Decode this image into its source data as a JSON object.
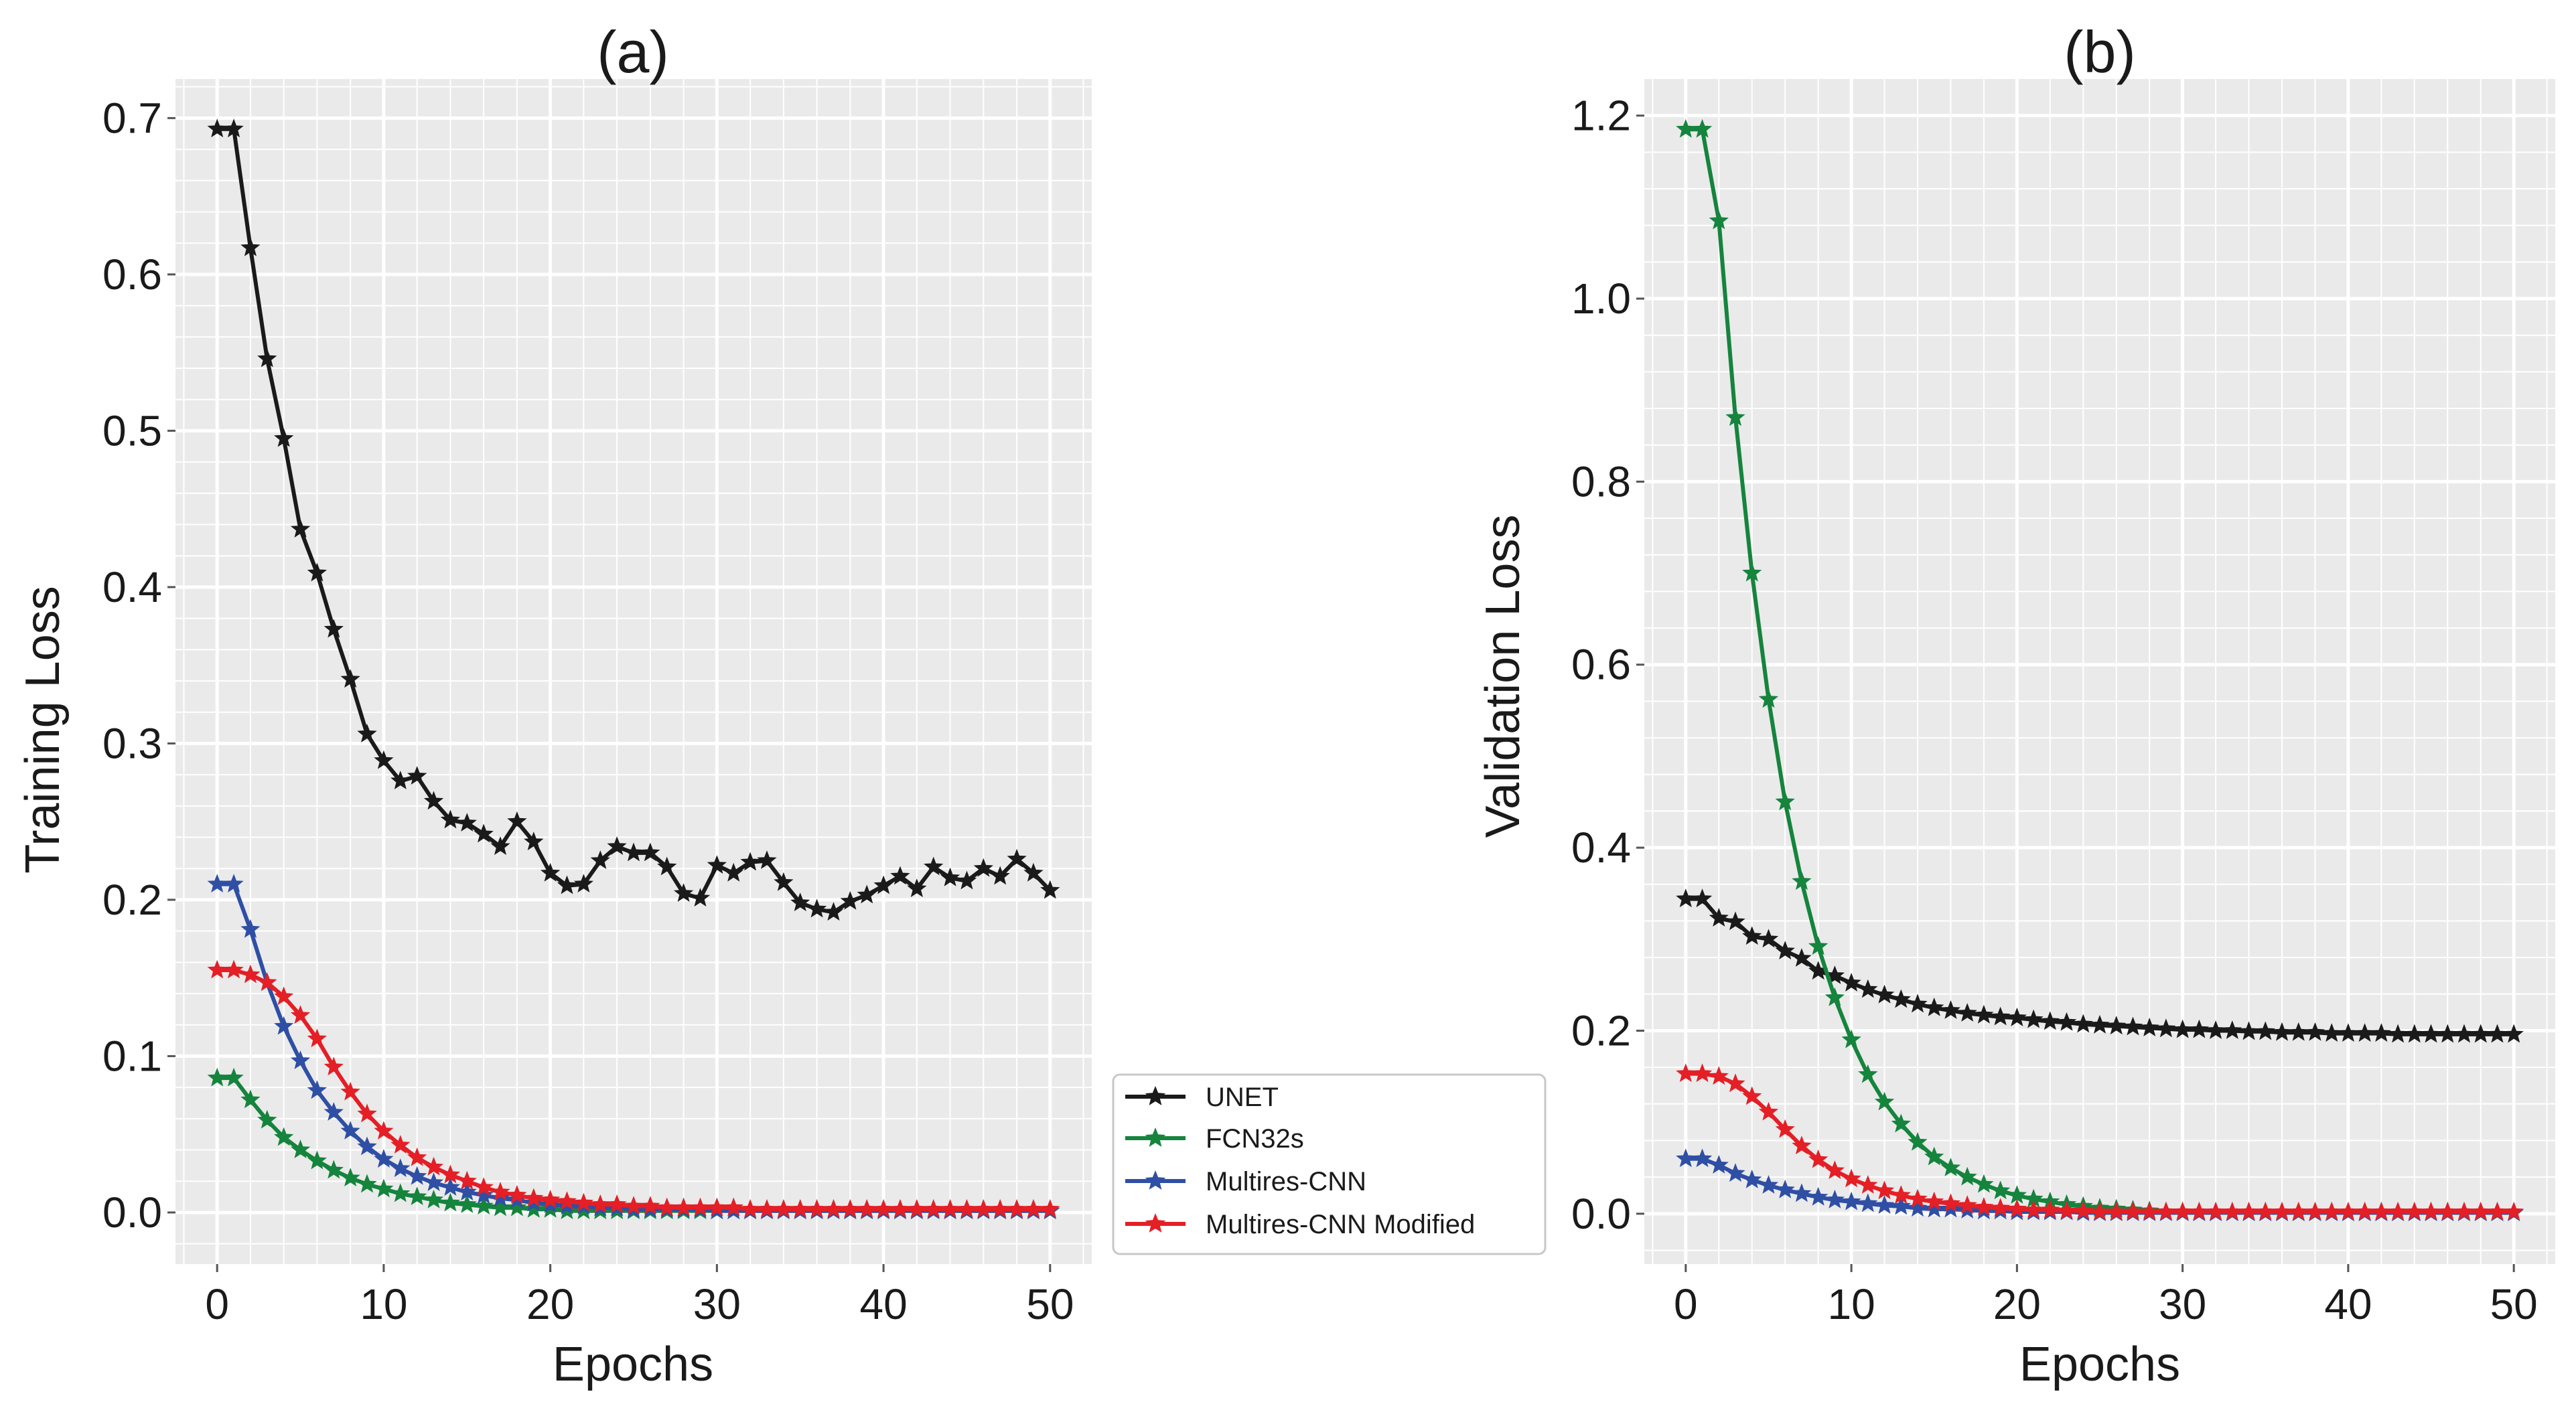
{
  "chart_data": [
    {
      "type": "line",
      "title": "(a)",
      "xlabel": "Epochs",
      "ylabel": "Training Loss",
      "xlim": [
        -2.5,
        52.5
      ],
      "ylim": [
        -0.033,
        0.725
      ],
      "grid": true,
      "xticks": [
        0,
        10,
        20,
        30,
        40,
        50
      ],
      "xtick_labels": [
        "0",
        "10",
        "20",
        "30",
        "40",
        "50"
      ],
      "yticks": [
        0.0,
        0.1,
        0.2,
        0.3,
        0.4,
        0.5,
        0.6,
        0.7
      ],
      "ytick_labels": [
        "0.0",
        "0.1",
        "0.2",
        "0.3",
        "0.4",
        "0.5",
        "0.6",
        "0.7"
      ],
      "x": [
        0,
        1,
        2,
        3,
        4,
        5,
        6,
        7,
        8,
        9,
        10,
        11,
        12,
        13,
        14,
        15,
        16,
        17,
        18,
        19,
        20,
        21,
        22,
        23,
        24,
        25,
        26,
        27,
        28,
        29,
        30,
        31,
        32,
        33,
        34,
        35,
        36,
        37,
        38,
        39,
        40,
        41,
        42,
        43,
        44,
        45,
        46,
        47,
        48,
        49,
        50
      ],
      "series": [
        {
          "name": "UNET",
          "color": "#1a1a1a",
          "marker": "star",
          "values": [
            0.693,
            0.693,
            0.617,
            0.546,
            0.495,
            0.437,
            0.409,
            0.373,
            0.341,
            0.306,
            0.289,
            0.276,
            0.279,
            0.263,
            0.251,
            0.249,
            0.242,
            0.234,
            0.25,
            0.237,
            0.217,
            0.209,
            0.21,
            0.225,
            0.234,
            0.23,
            0.23,
            0.221,
            0.204,
            0.201,
            0.222,
            0.217,
            0.224,
            0.225,
            0.211,
            0.198,
            0.194,
            0.192,
            0.199,
            0.203,
            0.209,
            0.215,
            0.207,
            0.221,
            0.214,
            0.212,
            0.22,
            0.215,
            0.226,
            0.217,
            0.206
          ]
        },
        {
          "name": "FCN32s",
          "color": "#15843d",
          "marker": "star",
          "values": [
            0.086,
            0.086,
            0.072,
            0.059,
            0.048,
            0.04,
            0.033,
            0.027,
            0.022,
            0.018,
            0.015,
            0.012,
            0.01,
            0.008,
            0.006,
            0.005,
            0.004,
            0.003,
            0.003,
            0.002,
            0.002,
            0.001,
            0.001,
            0.001,
            0.001,
            0.001,
            0.001,
            0.001,
            0.001,
            0.001,
            0.001,
            0.001,
            0.001,
            0.001,
            0.001,
            0.001,
            0.001,
            0.001,
            0.001,
            0.001,
            0.001,
            0.001,
            0.001,
            0.001,
            0.001,
            0.001,
            0.001,
            0.001,
            0.001,
            0.001,
            0.001
          ]
        },
        {
          "name": "Multires-CNN",
          "color": "#2f4fa5",
          "marker": "star",
          "values": [
            0.21,
            0.21,
            0.181,
            0.147,
            0.119,
            0.097,
            0.078,
            0.064,
            0.052,
            0.042,
            0.034,
            0.028,
            0.023,
            0.019,
            0.016,
            0.013,
            0.011,
            0.009,
            0.008,
            0.006,
            0.005,
            0.004,
            0.004,
            0.003,
            0.003,
            0.002,
            0.002,
            0.002,
            0.002,
            0.002,
            0.001,
            0.001,
            0.001,
            0.001,
            0.001,
            0.001,
            0.001,
            0.001,
            0.001,
            0.001,
            0.001,
            0.001,
            0.001,
            0.001,
            0.001,
            0.001,
            0.001,
            0.001,
            0.001,
            0.001,
            0.001
          ]
        },
        {
          "name": "Multires-CNN Modified",
          "color": "#e41f26",
          "marker": "star",
          "values": [
            0.155,
            0.155,
            0.152,
            0.147,
            0.138,
            0.126,
            0.111,
            0.093,
            0.077,
            0.063,
            0.052,
            0.043,
            0.035,
            0.029,
            0.024,
            0.02,
            0.016,
            0.013,
            0.011,
            0.009,
            0.008,
            0.007,
            0.006,
            0.005,
            0.005,
            0.004,
            0.004,
            0.003,
            0.003,
            0.003,
            0.003,
            0.003,
            0.002,
            0.002,
            0.002,
            0.002,
            0.002,
            0.002,
            0.002,
            0.002,
            0.002,
            0.002,
            0.002,
            0.002,
            0.002,
            0.002,
            0.002,
            0.002,
            0.002,
            0.002,
            0.002
          ]
        }
      ]
    },
    {
      "type": "line",
      "title": "(b)",
      "xlabel": "Epochs",
      "ylabel": "Validation Loss",
      "xlim": [
        -2.5,
        52.5
      ],
      "ylim": [
        -0.055,
        1.24
      ],
      "grid": true,
      "xticks": [
        0,
        10,
        20,
        30,
        40,
        50
      ],
      "xtick_labels": [
        "0",
        "10",
        "20",
        "30",
        "40",
        "50"
      ],
      "yticks": [
        0.0,
        0.2,
        0.4,
        0.6,
        0.8,
        1.0,
        1.2
      ],
      "ytick_labels": [
        "0.0",
        "0.2",
        "0.4",
        "0.6",
        "0.8",
        "1.0",
        "1.2"
      ],
      "x": [
        0,
        1,
        2,
        3,
        4,
        5,
        6,
        7,
        8,
        9,
        10,
        11,
        12,
        13,
        14,
        15,
        16,
        17,
        18,
        19,
        20,
        21,
        22,
        23,
        24,
        25,
        26,
        27,
        28,
        29,
        30,
        31,
        32,
        33,
        34,
        35,
        36,
        37,
        38,
        39,
        40,
        41,
        42,
        43,
        44,
        45,
        46,
        47,
        48,
        49,
        50
      ],
      "series": [
        {
          "name": "UNET",
          "color": "#1a1a1a",
          "marker": "star",
          "values": [
            0.344,
            0.344,
            0.323,
            0.319,
            0.303,
            0.3,
            0.287,
            0.279,
            0.265,
            0.26,
            0.252,
            0.245,
            0.239,
            0.234,
            0.229,
            0.225,
            0.222,
            0.219,
            0.217,
            0.215,
            0.214,
            0.212,
            0.21,
            0.209,
            0.207,
            0.206,
            0.205,
            0.204,
            0.203,
            0.202,
            0.201,
            0.201,
            0.2,
            0.2,
            0.199,
            0.199,
            0.198,
            0.198,
            0.198,
            0.197,
            0.197,
            0.197,
            0.197,
            0.196,
            0.196,
            0.196,
            0.196,
            0.196,
            0.196,
            0.196,
            0.196
          ]
        },
        {
          "name": "FCN32s",
          "color": "#15843d",
          "marker": "star",
          "values": [
            1.185,
            1.185,
            1.085,
            0.87,
            0.7,
            0.562,
            0.45,
            0.363,
            0.292,
            0.236,
            0.19,
            0.152,
            0.122,
            0.098,
            0.078,
            0.062,
            0.05,
            0.04,
            0.032,
            0.025,
            0.02,
            0.016,
            0.013,
            0.01,
            0.008,
            0.006,
            0.005,
            0.004,
            0.003,
            0.002,
            0.002,
            0.001,
            0.001,
            0.001,
            0.001,
            0.001,
            0.001,
            0.001,
            0.001,
            0.001,
            0.001,
            0.001,
            0.001,
            0.001,
            0.001,
            0.001,
            0.001,
            0.001,
            0.001,
            0.001,
            0.001
          ]
        },
        {
          "name": "Multires-CNN",
          "color": "#2f4fa5",
          "marker": "star",
          "values": [
            0.06,
            0.06,
            0.053,
            0.044,
            0.037,
            0.031,
            0.026,
            0.022,
            0.018,
            0.015,
            0.013,
            0.011,
            0.009,
            0.008,
            0.006,
            0.005,
            0.005,
            0.004,
            0.003,
            0.003,
            0.002,
            0.002,
            0.002,
            0.002,
            0.001,
            0.001,
            0.001,
            0.001,
            0.001,
            0.001,
            0.001,
            0.001,
            0.001,
            0.001,
            0.001,
            0.001,
            0.001,
            0.001,
            0.001,
            0.001,
            0.001,
            0.001,
            0.001,
            0.001,
            0.001,
            0.001,
            0.001,
            0.001,
            0.001,
            0.001,
            0.001
          ]
        },
        {
          "name": "Multires-CNN Modified",
          "color": "#e41f26",
          "marker": "star",
          "values": [
            0.153,
            0.153,
            0.15,
            0.142,
            0.128,
            0.111,
            0.092,
            0.074,
            0.059,
            0.047,
            0.038,
            0.031,
            0.025,
            0.02,
            0.016,
            0.013,
            0.011,
            0.009,
            0.007,
            0.006,
            0.005,
            0.004,
            0.004,
            0.003,
            0.003,
            0.002,
            0.002,
            0.002,
            0.002,
            0.002,
            0.002,
            0.002,
            0.002,
            0.002,
            0.002,
            0.002,
            0.002,
            0.002,
            0.002,
            0.002,
            0.002,
            0.002,
            0.002,
            0.002,
            0.002,
            0.002,
            0.002,
            0.002,
            0.002,
            0.002,
            0.002
          ]
        }
      ]
    }
  ],
  "legend": {
    "placement": "center, between panels",
    "entries": [
      {
        "label": "UNET",
        "color": "#1a1a1a"
      },
      {
        "label": "FCN32s",
        "color": "#15843d"
      },
      {
        "label": "Multires-CNN",
        "color": "#2f4fa5"
      },
      {
        "label": "Multires-CNN Modified",
        "color": "#e41f26"
      }
    ]
  }
}
